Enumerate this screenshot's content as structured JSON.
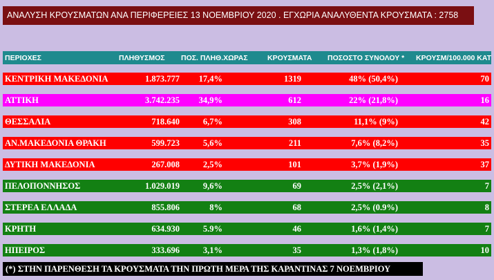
{
  "title": "ΑΝΑΛΥΣΗ ΚΡΟΥΣΜΑΤΩΝ ΑΝΑ ΠΕΡΙΦΕΡΕΙΕΣ   13 ΝΟΕΜΒΡΙΟΥ 2020 .   ΕΓΧΩΡΙΑ ΑΝΑΛΥΘΕΝΤΑ ΚΡΟΥΣΜΑΤΑ :  2758",
  "colors": {
    "background": "#cbbde3",
    "title_banner": "#7a0f12",
    "header": "#1f8a8e",
    "red": "#ff0000",
    "magenta": "#ff00ff",
    "green": "#138013",
    "footnote": "#000000"
  },
  "table": {
    "headers": {
      "region": "ΠΕΡΙΟΧΕΣ",
      "population": "ΠΛΗΘΥΣΜΟΣ",
      "pop_pct": "ΠΟΣ. ΠΛΗΘ.ΧΩΡΑΣ",
      "cases": "ΚΡΟΥΣΜΑΤΑ",
      "share": "ΠΟΣΟΣΤΟ ΣΥΝΟΛΟΥ *",
      "rate": "ΚΡΟΥΣΜ/100.000 ΚΑΤ"
    },
    "rows": [
      {
        "region": "ΚΕΝΤΡΙΚΗ ΜΑΚΕΔΟΝΙΑ",
        "population": "1.873.777",
        "pop_pct": "17,4%",
        "cases": "1319",
        "share": "48%  (50,4%)",
        "rate": "70",
        "color": "#ff0000"
      },
      {
        "region": "ΑΤΤΙΚΗ",
        "population": "3.742.235",
        "pop_pct": "34,9%",
        "cases": "612",
        "share": "22%   (21,8%)",
        "rate": "16",
        "color": "#ff00ff"
      },
      {
        "region": "ΘΕΣΣΑΛΙΑ",
        "population": "718.640",
        "pop_pct": "6,7%",
        "cases": "308",
        "share": "11,1%  (9%)",
        "rate": "42",
        "color": "#ff0000"
      },
      {
        "region": "ΑΝ.ΜΑΚΕΔΟΝΙΑ   ΘΡΑΚΗ",
        "population": "599.723",
        "pop_pct": "5,6%",
        "cases": "211",
        "share": "7,6%   (8,2%)",
        "rate": "35",
        "color": "#ff0000"
      },
      {
        "region": "ΔΥΤΙΚΗ ΜΑΚΕΔΟΝΙΑ",
        "population": "267.008",
        "pop_pct": "2,5%",
        "cases": "101",
        "share": "3,7%  (1,9%)",
        "rate": "37",
        "color": "#ff0000"
      },
      {
        "region": "ΠΕΛΟΠΟΝΝΗΣΟΣ",
        "population": "1.029.019",
        "pop_pct": "9,6%",
        "cases": "69",
        "share": "2,5%  (2,1%)",
        "rate": "7",
        "color": "#138013"
      },
      {
        "region": "ΣΤΕΡΕΑ ΕΛΛΑΔΑ",
        "population": "855.806",
        "pop_pct": "8%",
        "cases": "68",
        "share": "2,5%   (0.9%)",
        "rate": "8",
        "color": "#138013"
      },
      {
        "region": "ΚΡΗΤΗ",
        "population": "634.930",
        "pop_pct": "5.9%",
        "cases": "46",
        "share": "1,6%  (1,4%)",
        "rate": "7",
        "color": "#138013"
      },
      {
        "region": "ΗΠΕΙΡΟΣ",
        "population": "333.696",
        "pop_pct": "3,1%",
        "cases": "35",
        "share": "1,3%  (1,8%)",
        "rate": "10",
        "color": "#138013"
      }
    ]
  },
  "footnote": "(*) ΣΤΗΝ ΠΑΡΕΝΘΕΣΗ ΤΑ ΚΡΟΥΣΜΑΤΑ ΤΗΝ ΠΡΩΤΗ ΜΕΡΑ ΤΗΣ ΚΑΡΑΝΤΙΝΑΣ  7 ΝΟΕΜΒΡΙΟΥ"
}
